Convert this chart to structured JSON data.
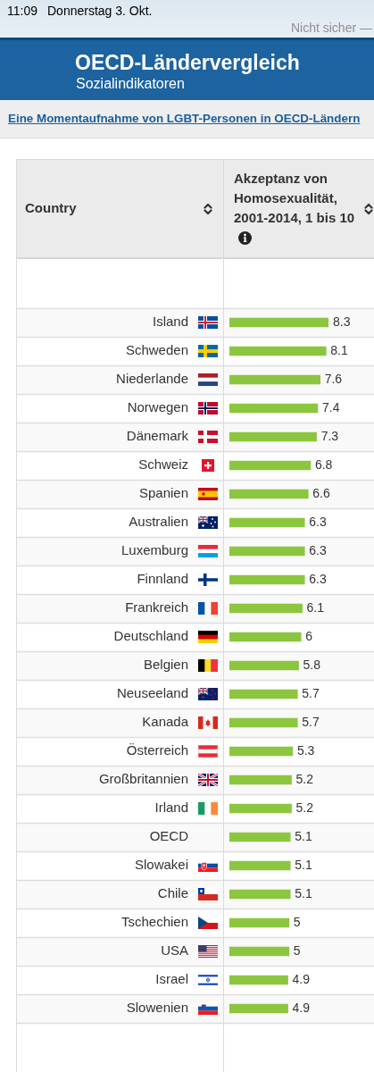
{
  "chart_data": {
    "type": "bar",
    "orientation": "horizontal",
    "title": "OECD-Ländervergleich",
    "subtitle": "Sozialindikatoren",
    "annotations": [
      "11:09",
      "Donnerstag 3. Okt.",
      "Nicht sicher —",
      "Eine Momentaufnahme von LGBT-Personen in OECD-Ländern",
      "Country",
      "Akzeptanz von Homosexualität, 2001-2014, 1 bis 10"
    ],
    "categories": [
      "Island",
      "Schweden",
      "Niederlande",
      "Norwegen",
      "Dänemark",
      "Schweiz",
      "Spanien",
      "Australien",
      "Luxemburg",
      "Finnland",
      "Frankreich",
      "Deutschland",
      "Belgien",
      "Neuseeland",
      "Kanada",
      "Österreich",
      "Großbritannien",
      "Irland",
      "OECD",
      "Slowakei",
      "Chile",
      "Tschechien",
      "USA",
      "Israel",
      "Slowenien"
    ],
    "values": [
      8.3,
      8.1,
      7.6,
      7.4,
      7.3,
      6.8,
      6.6,
      6.3,
      6.3,
      6.3,
      6.1,
      6,
      5.8,
      5.7,
      5.7,
      5.3,
      5.2,
      5.2,
      5.1,
      5.1,
      5.1,
      5,
      5,
      4.9,
      4.9
    ],
    "color": "#8cc63f",
    "data_labels": true,
    "grid": "y",
    "tick_labels": "y"
  }
}
